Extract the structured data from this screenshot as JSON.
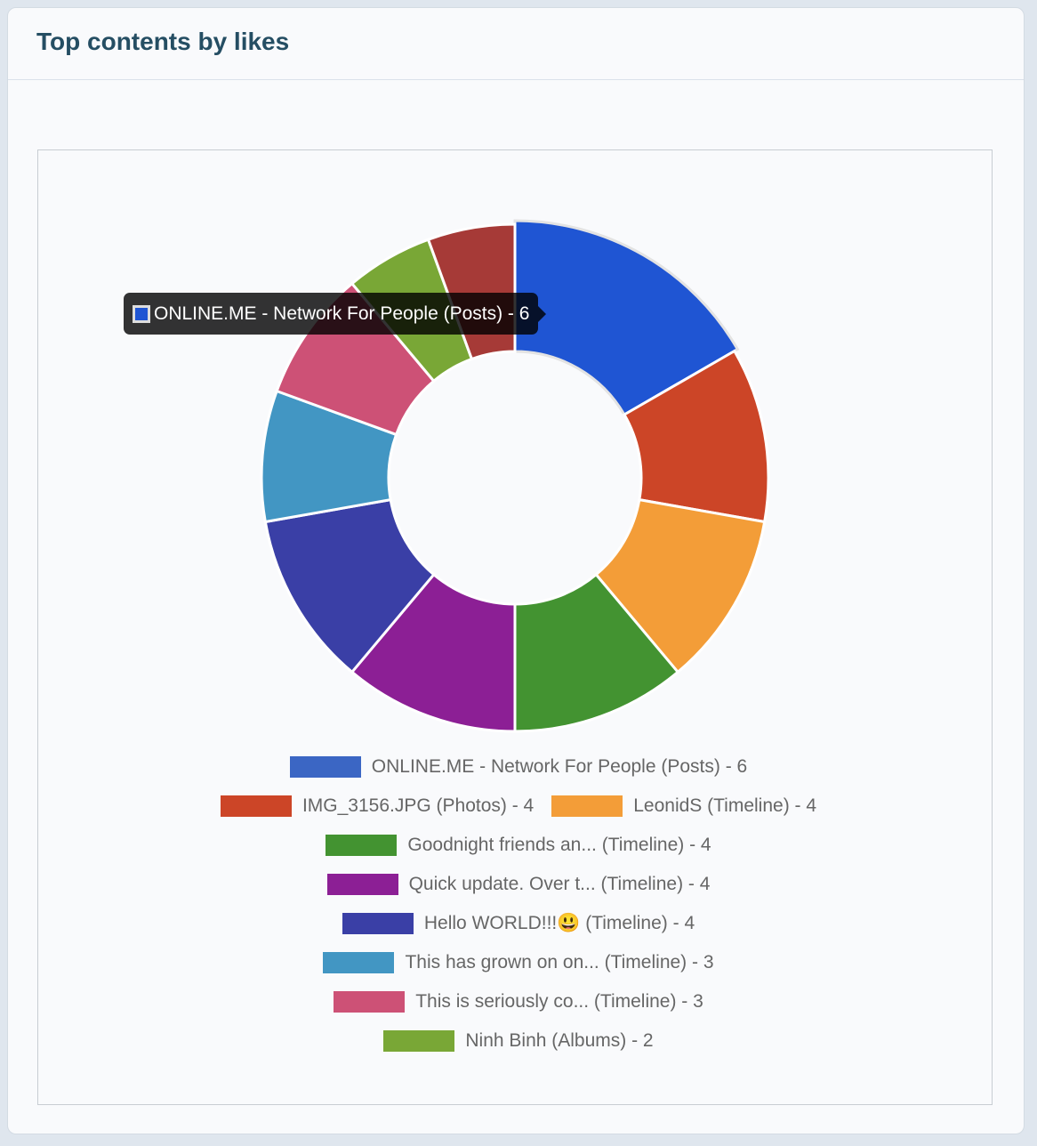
{
  "header": {
    "title": "Top contents by likes"
  },
  "tooltip": {
    "label": "ONLINE.ME - Network For People (Posts) - 6",
    "color": "#1f55d3"
  },
  "chart_data": {
    "type": "pie",
    "variant": "doughnut",
    "title": "Top contents by likes",
    "legend_position": "bottom",
    "slices": [
      {
        "label": "ONLINE.ME - Network For People (Posts) - 6",
        "value": 6,
        "color": "#3b66c4",
        "active_color": "#1f55d3"
      },
      {
        "label": "IMG_3156.JPG (Photos) - 4",
        "value": 4,
        "color": "#cc4527"
      },
      {
        "label": "LeonidS (Timeline) - 4",
        "value": 4,
        "color": "#f39d38"
      },
      {
        "label": "Goodnight friends an... (Timeline) - 4",
        "value": 4,
        "color": "#439331"
      },
      {
        "label": "Quick update. Over t... (Timeline) - 4",
        "value": 4,
        "color": "#8c1f95"
      },
      {
        "label": "Hello WORLD!!!😃  (Timeline) - 4",
        "value": 4,
        "color": "#3a3fa6"
      },
      {
        "label": "This has grown on on... (Timeline) - 3",
        "value": 3,
        "color": "#4296c3"
      },
      {
        "label": "This is seriously co... (Timeline) - 3",
        "value": 3,
        "color": "#cd5176"
      },
      {
        "label": "Ninh Binh (Albums) - 2",
        "value": 2,
        "color": "#79a736"
      },
      {
        "label": null,
        "value": 2,
        "color": "#a63a37"
      }
    ]
  }
}
